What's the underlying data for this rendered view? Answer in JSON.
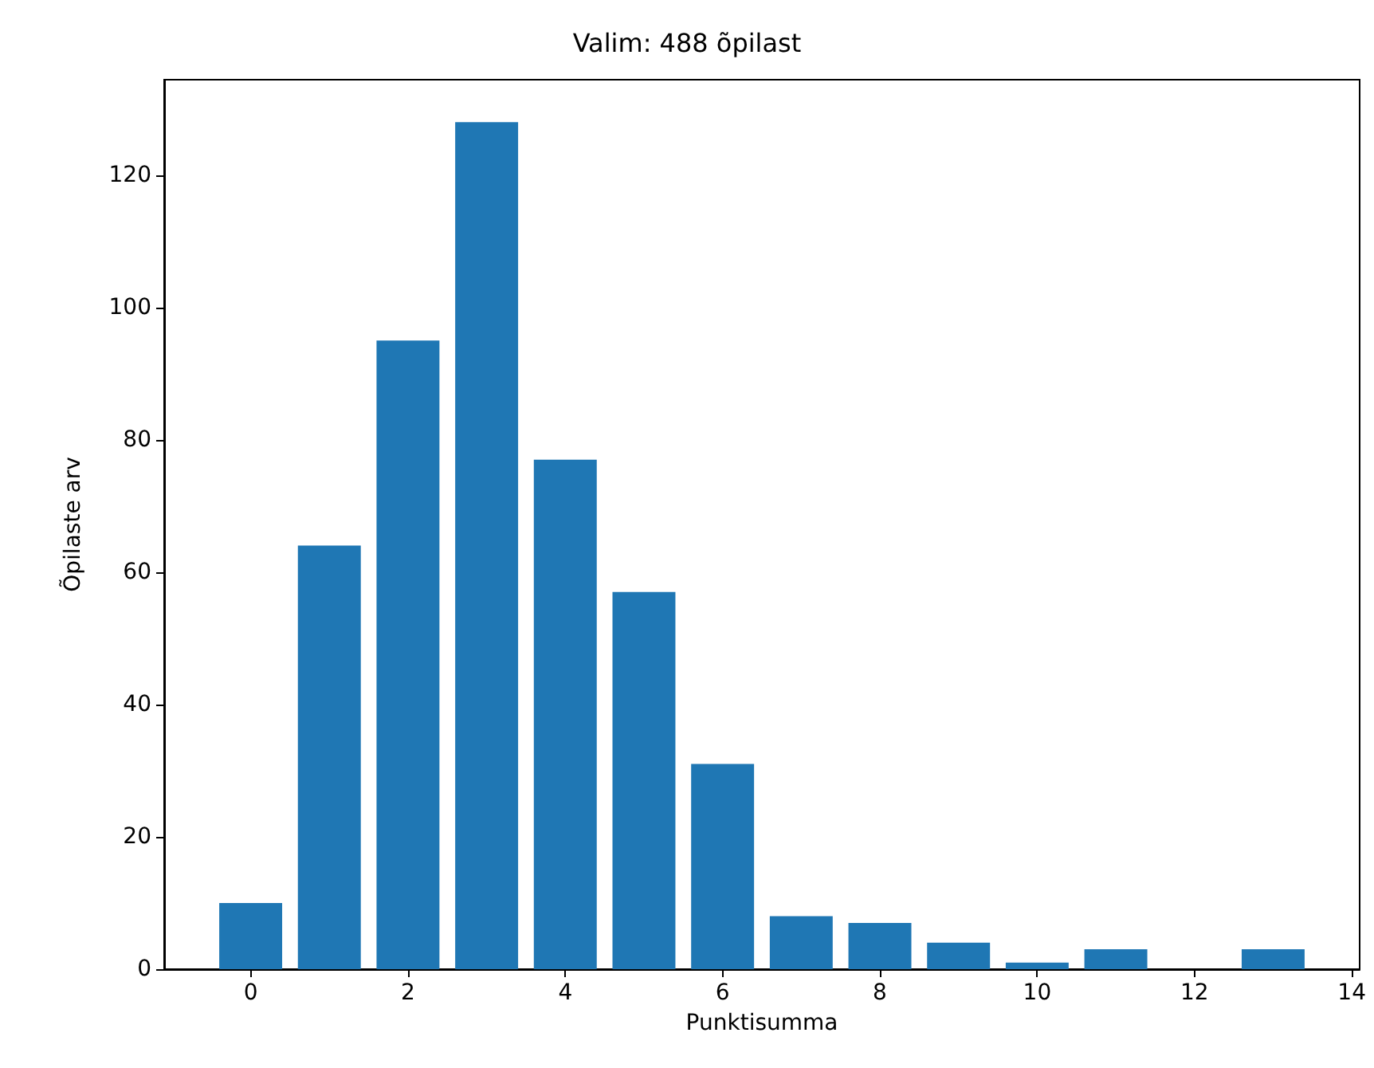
{
  "chart_data": {
    "type": "bar",
    "title": "Valim: 488 õpilast",
    "xlabel": "Punktisumma",
    "ylabel": "Õpilaste arv",
    "x": [
      0,
      1,
      2,
      3,
      4,
      5,
      6,
      7,
      8,
      9,
      10,
      11,
      12,
      13
    ],
    "values": [
      10,
      64,
      95,
      128,
      77,
      57,
      31,
      8,
      7,
      4,
      1,
      3,
      0,
      3
    ],
    "color": "#1f77b4",
    "xlim": [
      -1.1,
      14.1
    ],
    "xticks": [
      0,
      2,
      4,
      6,
      8,
      10,
      12,
      14
    ],
    "ylim": [
      0,
      134.4
    ],
    "yticks": [
      0,
      20,
      40,
      60,
      80,
      100,
      120
    ]
  }
}
